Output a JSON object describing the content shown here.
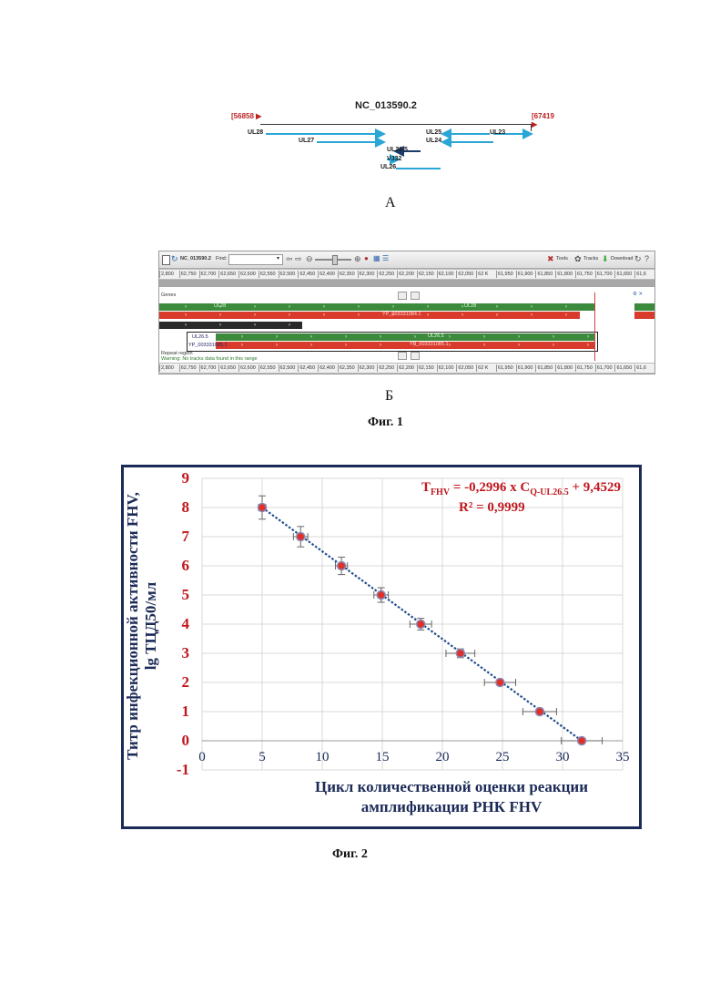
{
  "figA": {
    "accession": "NC_013590.2",
    "start": "56858",
    "end": "67419",
    "genes": [
      "UL28",
      "UL27",
      "UL25",
      "UL23",
      "UL24",
      "UL26.5",
      "VJ32",
      "UL26"
    ],
    "caption": "A"
  },
  "figB": {
    "toolbar": {
      "accession": "NC_013590.2",
      "find_label": "Find:",
      "tools": "Tools",
      "tracks": "Tracks",
      "download": "Download"
    },
    "ruler_ticks": [
      "2,800",
      "62,750",
      "62,700",
      "62,650",
      "62,600",
      "62,550",
      "62,500",
      "62,450",
      "62,400",
      "62,350",
      "62,300",
      "62,250",
      "62,200",
      "62,150",
      "62,100",
      "62,050",
      "62 K",
      "61,950",
      "61,900",
      "61,850",
      "61,800",
      "61,750",
      "61,700",
      "61,650",
      "61,6"
    ],
    "genes_section": "Genes",
    "repeat_section": "Repeat region",
    "warning": "Warning: No tracks data found in this range",
    "track_labels": {
      "ul28": "UL28",
      "ul28_right": "UL28",
      "prot1": "YP_003331084.1",
      "ul265": "UL26.5",
      "prot2": "YP_003331085.1",
      "ul265_right": "UL26.5",
      "prot2_right": "YP_003331085.1"
    },
    "caption": "Б"
  },
  "fig1_label": "Фиг. 1",
  "fig2_label": "Фиг. 2",
  "chart_data": {
    "type": "scatter",
    "equation_prefix": "T",
    "equation_prefix_sub": "FHV",
    "equation_mid": " = -0,2996 x C",
    "equation_mid_sub": "Q-UL26.5",
    "equation_suffix": " + 9,4529",
    "r2": "R² = 0,9999",
    "ylabel_line1": "Титр инфекционной активности FHV,",
    "ylabel_line2": "lg ТЦД50/мл",
    "xlabel_line1": "Цикл количественной оценки реакции",
    "xlabel_line2": "амплификации РНК FHV",
    "xlim": [
      0,
      35
    ],
    "ylim": [
      -1,
      9
    ],
    "xticks": [
      0,
      5,
      10,
      15,
      20,
      25,
      30,
      35
    ],
    "yticks": [
      -1,
      0,
      1,
      2,
      3,
      4,
      5,
      6,
      7,
      8,
      9
    ],
    "grid": true,
    "trendline": "linear",
    "points": [
      {
        "x": 5.0,
        "y": 8,
        "xerr": 0.3,
        "yerr": 0.4
      },
      {
        "x": 8.2,
        "y": 7,
        "xerr": 0.6,
        "yerr": 0.35
      },
      {
        "x": 11.6,
        "y": 6,
        "xerr": 0.5,
        "yerr": 0.3
      },
      {
        "x": 14.9,
        "y": 5,
        "xerr": 0.6,
        "yerr": 0.25
      },
      {
        "x": 18.2,
        "y": 4,
        "xerr": 0.9,
        "yerr": 0.2
      },
      {
        "x": 21.5,
        "y": 3,
        "xerr": 1.2,
        "yerr": 0.15
      },
      {
        "x": 24.8,
        "y": 2,
        "xerr": 1.3,
        "yerr": 0.1
      },
      {
        "x": 28.1,
        "y": 1,
        "xerr": 1.4,
        "yerr": 0.1
      },
      {
        "x": 31.6,
        "y": 0,
        "xerr": 1.7,
        "yerr": 0.05
      }
    ],
    "colors": {
      "point": "#e0302a",
      "line": "#1f4e8c",
      "axis_text": "#c0181e",
      "label_text": "#1b2a57"
    }
  }
}
